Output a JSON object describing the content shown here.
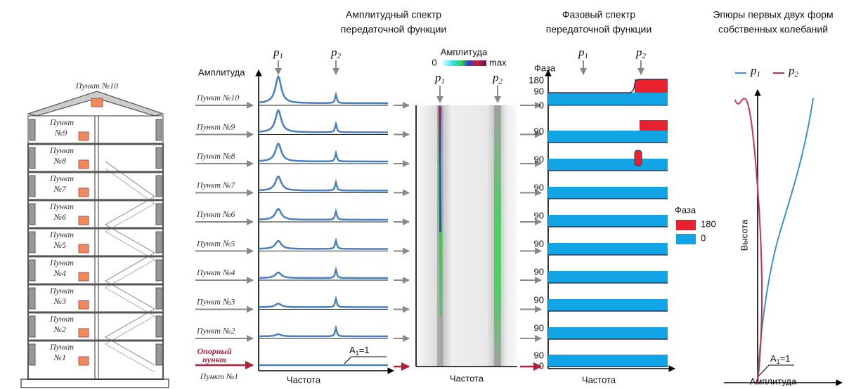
{
  "building": {
    "top_label": "Пункт №10",
    "floor_labels": [
      [
        "Пункт",
        "№9"
      ],
      [
        "Пункт",
        "№8"
      ],
      [
        "Пункт",
        "№7"
      ],
      [
        "Пункт",
        "№6"
      ],
      [
        "Пункт",
        "№5"
      ],
      [
        "Пункт",
        "№4"
      ],
      [
        "Пункт",
        "№3"
      ],
      [
        "Пункт",
        "№2"
      ],
      [
        "Пункт",
        "№1"
      ]
    ]
  },
  "amplitude_spectrum": {
    "title": [
      "Амплитудный спектр",
      "передаточной функции"
    ],
    "peaks": [
      {
        "symbol": "p",
        "index": "1"
      },
      {
        "symbol": "p",
        "index": "2"
      }
    ],
    "y_label": "Амплитуда",
    "rows": [
      "Пункт №10",
      "Пункт №9",
      "Пункт №8",
      "Пункт №7",
      "Пункт №6",
      "Пункт №5",
      "Пункт №4",
      "Пункт №3",
      "Пункт №2"
    ],
    "reference": [
      "Опорный",
      "пункт"
    ],
    "reference_below": "Пункт №1",
    "reference_level": {
      "symbol": "A",
      "index": "1",
      "suffix": "=1"
    },
    "x_label": "Частота"
  },
  "heatmap": {
    "colorbar_label": "Амплитуда",
    "colorbar_min": "0",
    "colorbar_max": "max",
    "peaks": [
      {
        "symbol": "p",
        "index": "1"
      },
      {
        "symbol": "p",
        "index": "2"
      }
    ],
    "x_label": "Частота"
  },
  "phase_spectrum": {
    "title": [
      "Фазовый  спектр",
      "передаточной функции"
    ],
    "peaks": [
      {
        "symbol": "p",
        "index": "1"
      },
      {
        "symbol": "p",
        "index": "2"
      }
    ],
    "y_label": "Фаза",
    "top_ticks": [
      180,
      90,
      0
    ],
    "row_ticks": [
      90,
      90,
      90,
      90,
      90,
      90,
      90,
      90,
      90
    ],
    "bottom_tick": 0,
    "legend": {
      "title": "Фаза",
      "items": [
        {
          "label": 180,
          "color": "#e8212e"
        },
        {
          "label": 0,
          "color": "#12a5e6"
        }
      ]
    },
    "x_label": "Частота"
  },
  "mode_shapes": {
    "title": [
      "Эпюры первых двух форм",
      "собственных колебаний"
    ],
    "legend": [
      {
        "symbol": "p",
        "index": "1",
        "color": "#3f8fd0"
      },
      {
        "symbol": "p",
        "index": "2",
        "color": "#c8344b"
      }
    ],
    "y_label": "Высота",
    "x_label": "Амплитуда",
    "reference_level": {
      "symbol": "A",
      "index": "1",
      "suffix": "=1"
    }
  }
}
